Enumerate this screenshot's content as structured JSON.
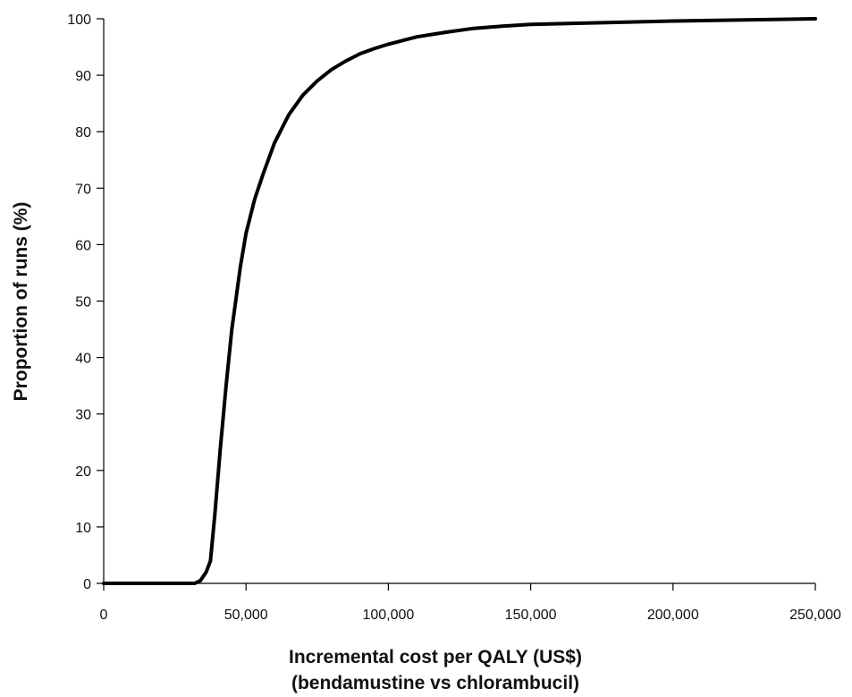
{
  "chart_data": {
    "type": "line",
    "title": "",
    "xlabel": "Incremental cost per QALY (US$)",
    "xlabel_line2": "(bendamustine vs chlorambucil)",
    "ylabel": "Proportion of runs (%)",
    "xlim": [
      0,
      250000
    ],
    "ylim": [
      0,
      100
    ],
    "x_ticks": [
      0,
      50000,
      100000,
      150000,
      200000,
      250000
    ],
    "x_tick_labels": [
      "0",
      "50,000",
      "100,000",
      "150,000",
      "200,000",
      "250,000"
    ],
    "y_ticks": [
      0,
      10,
      20,
      30,
      40,
      50,
      60,
      70,
      80,
      90,
      100
    ],
    "y_tick_labels": [
      "0",
      "10",
      "20",
      "30",
      "40",
      "50",
      "60",
      "70",
      "80",
      "90",
      "100"
    ],
    "grid": false,
    "legend": "none",
    "line_color": "#000000",
    "series": [
      {
        "x": [
          0,
          20000,
          32000,
          34000,
          36000,
          37500,
          39000,
          41000,
          43000,
          45000,
          48000,
          50000,
          53000,
          56000,
          60000,
          65000,
          70000,
          75000,
          80000,
          85000,
          90000,
          95000,
          100000,
          110000,
          120000,
          130000,
          140000,
          150000,
          175000,
          200000,
          225000,
          250000
        ],
        "y": [
          0,
          0,
          0,
          0.5,
          2,
          4,
          12,
          24,
          35,
          45,
          56,
          62,
          68,
          72.5,
          78,
          83,
          86.5,
          89,
          91,
          92.5,
          93.8,
          94.7,
          95.5,
          96.8,
          97.6,
          98.3,
          98.7,
          99,
          99.3,
          99.6,
          99.8,
          100
        ]
      }
    ]
  }
}
